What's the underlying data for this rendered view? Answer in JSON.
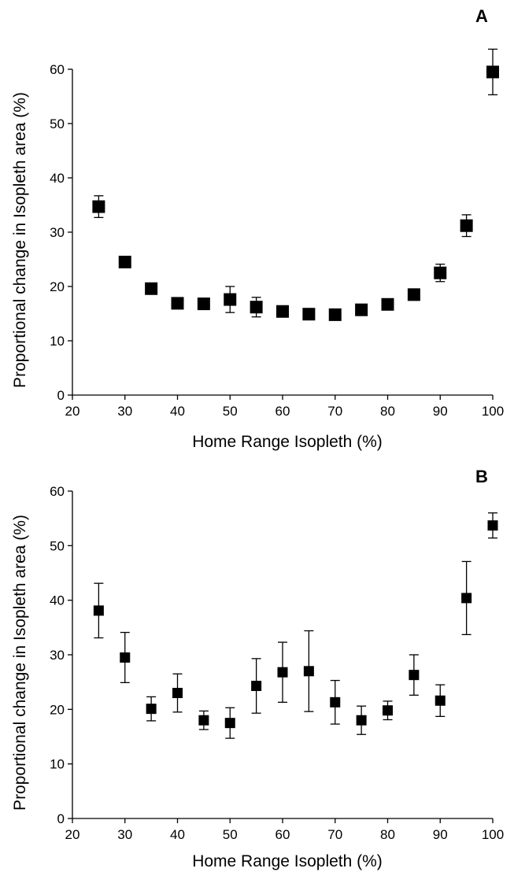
{
  "chart_data": [
    {
      "type": "scatter",
      "panel_label": "A",
      "xlabel": "Home Range Isopleth (%)",
      "ylabel": "Proportional change in Isopleth area (%)",
      "xlim": [
        20,
        100
      ],
      "ylim": [
        0,
        60
      ],
      "xticks": [
        20,
        30,
        40,
        50,
        60,
        70,
        80,
        90,
        100
      ],
      "yticks": [
        0,
        10,
        20,
        30,
        40,
        50,
        60
      ],
      "grid": false,
      "marker": "square",
      "color": "#000000",
      "points": [
        {
          "x": 25,
          "y": 34.7,
          "err": 2.0
        },
        {
          "x": 30,
          "y": 24.5,
          "err": 0.6
        },
        {
          "x": 35,
          "y": 19.6,
          "err": 0.5
        },
        {
          "x": 40,
          "y": 16.9,
          "err": 0.4
        },
        {
          "x": 45,
          "y": 16.8,
          "err": 0.4
        },
        {
          "x": 50,
          "y": 17.6,
          "err": 2.4
        },
        {
          "x": 55,
          "y": 16.2,
          "err": 1.8
        },
        {
          "x": 60,
          "y": 15.4,
          "err": 0.9
        },
        {
          "x": 65,
          "y": 14.9,
          "err": 0.5
        },
        {
          "x": 70,
          "y": 14.8,
          "err": 0.5
        },
        {
          "x": 75,
          "y": 15.7,
          "err": 0.8
        },
        {
          "x": 80,
          "y": 16.7,
          "err": 0.7
        },
        {
          "x": 85,
          "y": 18.5,
          "err": 0.8
        },
        {
          "x": 90,
          "y": 22.5,
          "err": 1.6
        },
        {
          "x": 95,
          "y": 31.2,
          "err": 2.0
        },
        {
          "x": 100,
          "y": 59.5,
          "err": 4.2
        }
      ]
    },
    {
      "type": "scatter",
      "panel_label": "B",
      "xlabel": "Home Range Isopleth (%)",
      "ylabel": "Proportional change in Isopleth area (%)",
      "xlim": [
        20,
        100
      ],
      "ylim": [
        0,
        60
      ],
      "xticks": [
        20,
        30,
        40,
        50,
        60,
        70,
        80,
        90,
        100
      ],
      "yticks": [
        0,
        10,
        20,
        30,
        40,
        50,
        60
      ],
      "grid": false,
      "marker": "square",
      "color": "#000000",
      "points": [
        {
          "x": 25,
          "y": 38.1,
          "err": 5.0
        },
        {
          "x": 30,
          "y": 29.5,
          "err": 4.6
        },
        {
          "x": 35,
          "y": 20.1,
          "err": 2.2
        },
        {
          "x": 40,
          "y": 23.0,
          "err": 3.5
        },
        {
          "x": 45,
          "y": 18.0,
          "err": 1.7
        },
        {
          "x": 50,
          "y": 17.5,
          "err": 2.8
        },
        {
          "x": 55,
          "y": 24.3,
          "err": 5.0
        },
        {
          "x": 60,
          "y": 26.8,
          "err": 5.5
        },
        {
          "x": 65,
          "y": 27.0,
          "err": 7.4
        },
        {
          "x": 70,
          "y": 21.3,
          "err": 4.0
        },
        {
          "x": 75,
          "y": 18.0,
          "err": 2.6
        },
        {
          "x": 80,
          "y": 19.8,
          "err": 1.7
        },
        {
          "x": 85,
          "y": 26.3,
          "err": 3.7
        },
        {
          "x": 90,
          "y": 21.6,
          "err": 2.9
        },
        {
          "x": 95,
          "y": 40.4,
          "err": 6.7
        },
        {
          "x": 100,
          "y": 53.7,
          "err": 2.3
        }
      ]
    }
  ]
}
